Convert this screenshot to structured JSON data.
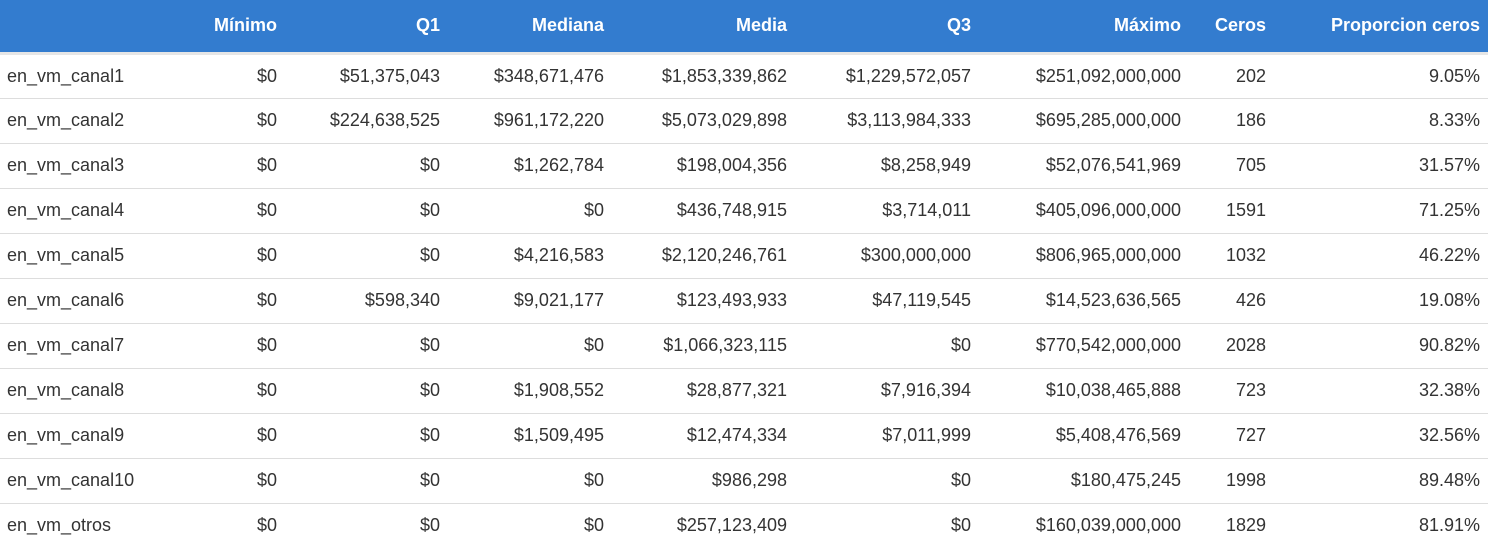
{
  "table": {
    "columns": [
      "",
      "Mínimo",
      "Q1",
      "Mediana",
      "Media",
      "Q3",
      "Máximo",
      "Ceros",
      "Proporcion ceros"
    ],
    "rows": [
      [
        "en_vm_canal1",
        "$0",
        "$51,375,043",
        "$348,671,476",
        "$1,853,339,862",
        "$1,229,572,057",
        "$251,092,000,000",
        "202",
        "9.05%"
      ],
      [
        "en_vm_canal2",
        "$0",
        "$224,638,525",
        "$961,172,220",
        "$5,073,029,898",
        "$3,113,984,333",
        "$695,285,000,000",
        "186",
        "8.33%"
      ],
      [
        "en_vm_canal3",
        "$0",
        "$0",
        "$1,262,784",
        "$198,004,356",
        "$8,258,949",
        "$52,076,541,969",
        "705",
        "31.57%"
      ],
      [
        "en_vm_canal4",
        "$0",
        "$0",
        "$0",
        "$436,748,915",
        "$3,714,011",
        "$405,096,000,000",
        "1591",
        "71.25%"
      ],
      [
        "en_vm_canal5",
        "$0",
        "$0",
        "$4,216,583",
        "$2,120,246,761",
        "$300,000,000",
        "$806,965,000,000",
        "1032",
        "46.22%"
      ],
      [
        "en_vm_canal6",
        "$0",
        "$598,340",
        "$9,021,177",
        "$123,493,933",
        "$47,119,545",
        "$14,523,636,565",
        "426",
        "19.08%"
      ],
      [
        "en_vm_canal7",
        "$0",
        "$0",
        "$0",
        "$1,066,323,115",
        "$0",
        "$770,542,000,000",
        "2028",
        "90.82%"
      ],
      [
        "en_vm_canal8",
        "$0",
        "$0",
        "$1,908,552",
        "$28,877,321",
        "$7,916,394",
        "$10,038,465,888",
        "723",
        "32.38%"
      ],
      [
        "en_vm_canal9",
        "$0",
        "$0",
        "$1,509,495",
        "$12,474,334",
        "$7,011,999",
        "$5,408,476,569",
        "727",
        "32.56%"
      ],
      [
        "en_vm_canal10",
        "$0",
        "$0",
        "$0",
        "$986,298",
        "$0",
        "$180,475,245",
        "1998",
        "89.48%"
      ],
      [
        "en_vm_otros",
        "$0",
        "$0",
        "$0",
        "$257,123,409",
        "$0",
        "$160,039,000,000",
        "1829",
        "81.91%"
      ]
    ]
  },
  "colors": {
    "header_bg": "#337ccf",
    "header_text": "#ffffff",
    "row_border": "#dddddd"
  }
}
